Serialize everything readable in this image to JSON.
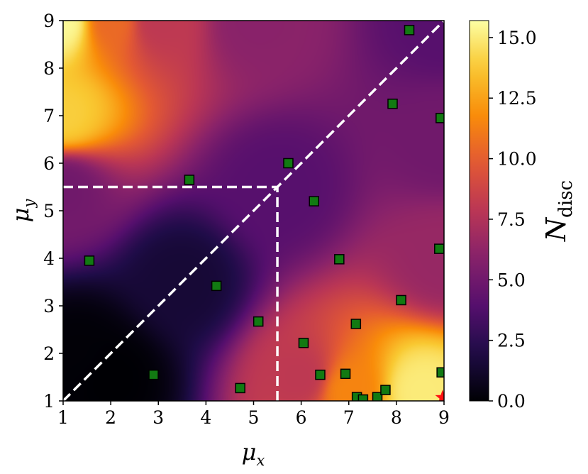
{
  "chart_data": {
    "type": "heatmap",
    "xlabel": "μ",
    "xlabel_sub": "x",
    "ylabel": "μ",
    "ylabel_sub": "y",
    "xlim": [
      1,
      9
    ],
    "ylim": [
      1,
      9
    ],
    "xticks": [
      "1",
      "2",
      "3",
      "4",
      "5",
      "6",
      "7",
      "8",
      "9"
    ],
    "yticks": [
      "1",
      "2",
      "3",
      "4",
      "5",
      "6",
      "7",
      "8",
      "9"
    ],
    "colorbar": {
      "label": "N",
      "label_sub": "disc",
      "range": [
        0.0,
        15.7
      ],
      "ticks": [
        "0.0",
        "2.5",
        "5.0",
        "7.5",
        "10.0",
        "12.5",
        "15.0"
      ],
      "tick_values": [
        0.0,
        2.5,
        5.0,
        7.5,
        10.0,
        12.5,
        15.0
      ],
      "colormap": "inferno"
    },
    "heatmap_field": {
      "description_free": true,
      "anchors": [
        {
          "x": 1.0,
          "y": 9.0,
          "value": 15.5
        },
        {
          "x": 1.0,
          "y": 7.0,
          "value": 14.0
        },
        {
          "x": 1.0,
          "y": 5.5,
          "value": 5.0
        },
        {
          "x": 1.3,
          "y": 2.0,
          "value": 0.1
        },
        {
          "x": 2.0,
          "y": 1.5,
          "value": 0.0
        },
        {
          "x": 2.0,
          "y": 9.0,
          "value": 10.5
        },
        {
          "x": 3.0,
          "y": 9.0,
          "value": 8.0
        },
        {
          "x": 5.0,
          "y": 9.0,
          "value": 6.0
        },
        {
          "x": 9.0,
          "y": 9.0,
          "value": 4.0
        },
        {
          "x": 5.5,
          "y": 5.5,
          "value": 4.0
        },
        {
          "x": 3.5,
          "y": 3.5,
          "value": 1.5
        },
        {
          "x": 8.5,
          "y": 1.2,
          "value": 15.0
        },
        {
          "x": 7.0,
          "y": 1.2,
          "value": 11.5
        },
        {
          "x": 6.0,
          "y": 1.5,
          "value": 8.0
        },
        {
          "x": 9.0,
          "y": 4.0,
          "value": 6.5
        },
        {
          "x": 9.0,
          "y": 6.5,
          "value": 5.0
        }
      ]
    },
    "points": [
      {
        "x": 1.55,
        "y": 3.95
      },
      {
        "x": 2.9,
        "y": 1.55
      },
      {
        "x": 3.65,
        "y": 5.65
      },
      {
        "x": 4.22,
        "y": 3.42
      },
      {
        "x": 4.72,
        "y": 1.27
      },
      {
        "x": 5.1,
        "y": 2.67
      },
      {
        "x": 5.73,
        "y": 6.0
      },
      {
        "x": 6.05,
        "y": 2.22
      },
      {
        "x": 6.27,
        "y": 5.2
      },
      {
        "x": 6.4,
        "y": 1.55
      },
      {
        "x": 6.8,
        "y": 3.98
      },
      {
        "x": 6.93,
        "y": 1.57
      },
      {
        "x": 7.15,
        "y": 2.62
      },
      {
        "x": 7.17,
        "y": 1.08
      },
      {
        "x": 7.3,
        "y": 1.03
      },
      {
        "x": 7.6,
        "y": 1.08
      },
      {
        "x": 7.77,
        "y": 1.23
      },
      {
        "x": 7.92,
        "y": 7.25
      },
      {
        "x": 8.1,
        "y": 3.12
      },
      {
        "x": 8.27,
        "y": 8.8
      },
      {
        "x": 8.9,
        "y": 4.2
      },
      {
        "x": 8.93,
        "y": 6.95
      },
      {
        "x": 8.95,
        "y": 1.6
      }
    ],
    "special_point": {
      "x": 8.97,
      "y": 1.07,
      "marker": "red star"
    },
    "point_color": "#127a12",
    "guide_lines": [
      {
        "kind": "diagonal",
        "from": [
          1,
          1
        ],
        "to": [
          9,
          9
        ]
      },
      {
        "kind": "horizontal",
        "from": [
          1,
          5.5
        ],
        "to": [
          5.5,
          5.5
        ]
      },
      {
        "kind": "vertical",
        "from": [
          5.5,
          1
        ],
        "to": [
          5.5,
          5.5
        ]
      }
    ]
  }
}
